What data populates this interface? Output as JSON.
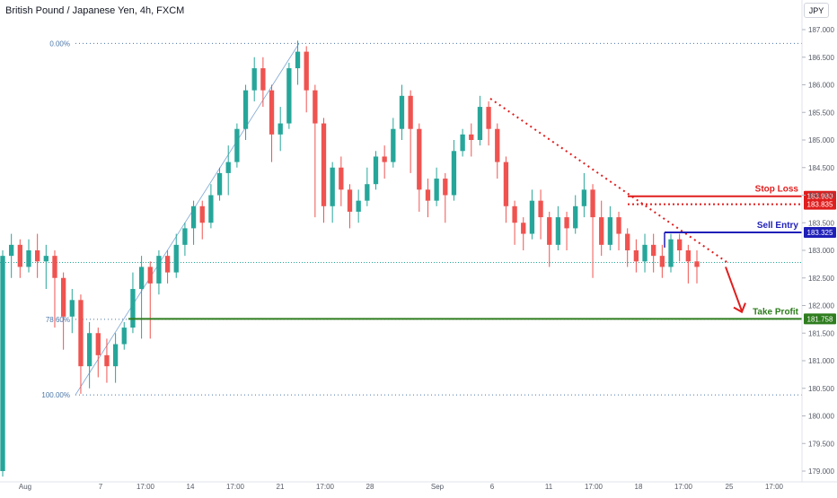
{
  "header": {
    "title": "British Pound / Japanese Yen, 4h, FXCM",
    "currency_label": "JPY"
  },
  "colors": {
    "up": "#26a69a",
    "down": "#ef5350",
    "stop": "#e01e1e",
    "sell": "#1f1fb8",
    "profit": "#2e7d1e",
    "fib": "#4a76a8",
    "axis_text": "#555a66"
  },
  "chart_data": {
    "type": "candlestick",
    "title": "British Pound / Japanese Yen, 4h, FXCM",
    "ylim": [
      178.85,
      187.15
    ],
    "y_ticks": [
      "187.000",
      "186.500",
      "186.000",
      "185.500",
      "185.000",
      "184.500",
      "184.000",
      "183.500",
      "183.000",
      "182.500",
      "182.000",
      "181.500",
      "181.000",
      "180.500",
      "180.000",
      "179.500",
      "179.000"
    ],
    "x_ticks": [
      "Aug",
      "7",
      "17:00",
      "14",
      "17:00",
      "21",
      "17:00",
      "28",
      "Sep",
      "6",
      "11",
      "17:00",
      "18",
      "17:00",
      "25",
      "17:00"
    ],
    "levels": [
      {
        "name": "Stop Loss",
        "label": "183.980",
        "value": 183.98,
        "role": "stop"
      },
      {
        "name": "",
        "label": "183.835",
        "value": 183.835,
        "role": "stop_dotted"
      },
      {
        "name": "Sell Entry",
        "label": "183.325",
        "value": 183.325,
        "role": "sell"
      },
      {
        "name": "Take Profit",
        "label": "181.758",
        "value": 181.758,
        "role": "profit"
      }
    ],
    "fibonacci": [
      {
        "label": "0.00%",
        "value": 186.75
      },
      {
        "label": "78.60%",
        "value": 181.75
      },
      {
        "label": "100.00%",
        "value": 180.38
      }
    ],
    "current_price": 182.78,
    "trendline": {
      "from": 185.75,
      "to": 182.78
    },
    "candles": [
      [
        179.0,
        182.9,
        178.9,
        183.0
      ],
      [
        182.9,
        183.1,
        182.5,
        183.3
      ],
      [
        183.1,
        182.7,
        182.5,
        183.2
      ],
      [
        182.7,
        183.0,
        182.6,
        183.2
      ],
      [
        183.0,
        182.8,
        182.5,
        183.3
      ],
      [
        182.8,
        182.9,
        182.3,
        183.1
      ],
      [
        182.9,
        182.5,
        181.6,
        183.0
      ],
      [
        182.5,
        181.8,
        181.2,
        182.6
      ],
      [
        181.8,
        182.1,
        181.5,
        182.3
      ],
      [
        182.1,
        180.9,
        180.4,
        182.2
      ],
      [
        180.9,
        181.5,
        180.5,
        181.7
      ],
      [
        181.5,
        181.1,
        180.7,
        181.6
      ],
      [
        181.1,
        180.9,
        180.6,
        181.4
      ],
      [
        180.9,
        181.3,
        180.6,
        181.5
      ],
      [
        181.3,
        181.6,
        181.2,
        181.7
      ],
      [
        181.6,
        182.3,
        181.5,
        182.6
      ],
      [
        182.3,
        182.7,
        181.4,
        182.9
      ],
      [
        182.7,
        182.4,
        181.4,
        182.8
      ],
      [
        182.4,
        182.9,
        182.2,
        183.0
      ],
      [
        182.9,
        182.6,
        182.4,
        183.0
      ],
      [
        182.6,
        183.1,
        182.5,
        183.3
      ],
      [
        183.1,
        183.4,
        182.9,
        183.5
      ],
      [
        183.4,
        183.8,
        183.1,
        183.9
      ],
      [
        183.8,
        183.5,
        183.2,
        183.9
      ],
      [
        183.5,
        184.0,
        183.4,
        184.2
      ],
      [
        184.0,
        184.4,
        183.9,
        184.5
      ],
      [
        184.4,
        184.6,
        184.0,
        184.9
      ],
      [
        184.6,
        185.2,
        184.5,
        185.3
      ],
      [
        185.2,
        185.9,
        185.0,
        186.0
      ],
      [
        185.9,
        186.3,
        185.7,
        186.5
      ],
      [
        186.3,
        185.9,
        185.6,
        186.5
      ],
      [
        185.9,
        185.1,
        184.6,
        186.0
      ],
      [
        185.1,
        185.3,
        184.8,
        185.6
      ],
      [
        185.3,
        186.3,
        185.2,
        186.4
      ],
      [
        186.3,
        186.6,
        186.0,
        186.8
      ],
      [
        186.6,
        185.9,
        185.5,
        186.7
      ],
      [
        185.9,
        185.3,
        183.6,
        186.0
      ],
      [
        185.3,
        183.8,
        183.5,
        185.4
      ],
      [
        183.8,
        184.5,
        183.5,
        184.6
      ],
      [
        184.5,
        184.1,
        183.8,
        184.7
      ],
      [
        184.1,
        183.7,
        183.4,
        184.2
      ],
      [
        183.7,
        183.9,
        183.5,
        184.1
      ],
      [
        183.9,
        184.2,
        183.8,
        184.5
      ],
      [
        184.2,
        184.7,
        184.1,
        184.8
      ],
      [
        184.7,
        184.6,
        184.3,
        184.9
      ],
      [
        184.6,
        185.2,
        184.5,
        185.4
      ],
      [
        185.2,
        185.8,
        185.0,
        186.0
      ],
      [
        185.8,
        185.2,
        184.4,
        185.9
      ],
      [
        185.2,
        184.1,
        183.7,
        185.3
      ],
      [
        184.1,
        183.9,
        183.6,
        184.3
      ],
      [
        183.9,
        184.3,
        183.8,
        184.5
      ],
      [
        184.3,
        184.0,
        183.5,
        184.4
      ],
      [
        184.0,
        184.8,
        183.9,
        185.0
      ],
      [
        184.8,
        185.1,
        184.7,
        185.2
      ],
      [
        185.1,
        185.0,
        184.7,
        185.3
      ],
      [
        185.0,
        185.6,
        184.9,
        185.8
      ],
      [
        185.6,
        185.2,
        184.9,
        185.7
      ],
      [
        185.2,
        184.6,
        184.3,
        185.3
      ],
      [
        184.6,
        183.8,
        183.5,
        184.7
      ],
      [
        183.8,
        183.5,
        183.1,
        183.9
      ],
      [
        183.5,
        183.3,
        183.0,
        183.6
      ],
      [
        183.3,
        183.9,
        183.2,
        184.1
      ],
      [
        183.9,
        183.6,
        183.2,
        184.1
      ],
      [
        183.6,
        183.1,
        182.7,
        183.7
      ],
      [
        183.1,
        183.6,
        183.0,
        183.8
      ],
      [
        183.6,
        183.4,
        183.0,
        183.7
      ],
      [
        183.4,
        183.8,
        183.3,
        184.0
      ],
      [
        183.8,
        184.1,
        183.6,
        184.4
      ],
      [
        184.1,
        183.6,
        182.5,
        184.2
      ],
      [
        183.6,
        183.1,
        182.9,
        183.9
      ],
      [
        183.1,
        183.6,
        183.0,
        183.8
      ],
      [
        183.6,
        183.3,
        183.0,
        183.7
      ],
      [
        183.3,
        183.0,
        182.7,
        183.4
      ],
      [
        183.0,
        182.8,
        182.6,
        183.2
      ],
      [
        182.8,
        183.1,
        182.6,
        183.3
      ],
      [
        183.1,
        182.9,
        182.6,
        183.3
      ],
      [
        182.9,
        182.7,
        182.5,
        183.1
      ],
      [
        182.7,
        183.2,
        182.6,
        183.3
      ],
      [
        183.2,
        183.0,
        182.8,
        183.3
      ],
      [
        183.0,
        182.8,
        182.4,
        183.1
      ],
      [
        182.8,
        182.7,
        182.4,
        183.0
      ]
    ]
  }
}
